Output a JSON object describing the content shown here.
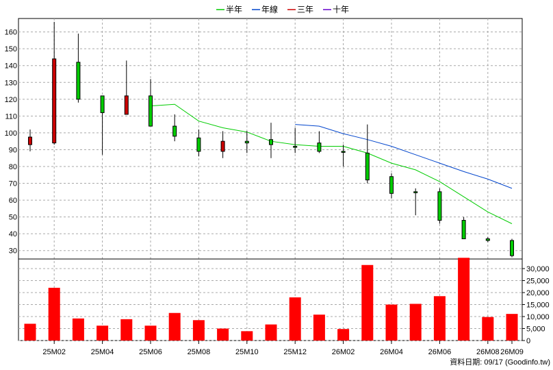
{
  "chart_data": {
    "type": "candlestick",
    "legend": [
      {
        "name": "半年",
        "color": "#00cc00"
      },
      {
        "name": "年線",
        "color": "#0044cc"
      },
      {
        "name": "三年",
        "color": "#cc0000"
      },
      {
        "name": "十年",
        "color": "#6600cc"
      }
    ],
    "legend_position": "top-center",
    "up_color": "#00cc00",
    "down_color": "#cc0000",
    "volume_color": "#ff0000",
    "price_axis": {
      "ticks": [
        30,
        40,
        50,
        60,
        70,
        80,
        90,
        100,
        110,
        120,
        130,
        140,
        150,
        160
      ],
      "range": [
        25,
        168
      ]
    },
    "volume_axis": {
      "ticks": [
        "0",
        "5,000",
        "10,000",
        "15,000",
        "20,000",
        "25,000",
        "30,000"
      ],
      "tick_values": [
        0,
        5000,
        10000,
        15000,
        20000,
        25000,
        30000
      ],
      "range": [
        0,
        34000
      ]
    },
    "x_labels": [
      "25M02",
      "25M04",
      "25M06",
      "25M08",
      "25M10",
      "25M12",
      "26M02",
      "26M04",
      "26M06",
      "26M08",
      "26M09"
    ],
    "candles": [
      {
        "open": 97.5,
        "close": 93,
        "high": 102,
        "low": 89
      },
      {
        "open": 144,
        "close": 94,
        "high": 166,
        "low": 93
      },
      {
        "open": 120,
        "close": 142,
        "high": 159,
        "low": 118
      },
      {
        "open": 112,
        "close": 122,
        "high": 122,
        "low": 87
      },
      {
        "open": 122,
        "close": 111,
        "high": 143,
        "low": 111
      },
      {
        "open": 104,
        "close": 122,
        "high": 132,
        "low": 104
      },
      {
        "open": 98,
        "close": 104,
        "high": 111,
        "low": 95
      },
      {
        "open": 89,
        "close": 97,
        "high": 102,
        "low": 86
      },
      {
        "open": 95,
        "close": 89,
        "high": 101,
        "low": 85
      },
      {
        "open": 94,
        "close": 95,
        "high": 101,
        "low": 88
      },
      {
        "open": 93,
        "close": 96,
        "high": 106,
        "low": 85
      },
      {
        "open": 92,
        "close": 92,
        "high": 103,
        "low": 88
      },
      {
        "open": 89,
        "close": 94,
        "high": 101,
        "low": 88
      },
      {
        "open": 89,
        "close": 89,
        "high": 93,
        "low": 80
      },
      {
        "open": 72,
        "close": 88,
        "high": 105,
        "low": 70
      },
      {
        "open": 64,
        "close": 74,
        "high": 76,
        "low": 61
      },
      {
        "open": 65,
        "close": 65,
        "high": 67,
        "low": 51
      },
      {
        "open": 48,
        "close": 65,
        "high": 67,
        "low": 46
      },
      {
        "open": 37,
        "close": 48,
        "high": 50,
        "low": 37
      },
      {
        "open": 36,
        "close": 37,
        "high": 38,
        "low": 35
      },
      {
        "open": 27,
        "close": 36,
        "high": 37,
        "low": 26
      }
    ],
    "volumes": [
      7000,
      22000,
      9200,
      6200,
      8900,
      6200,
      11500,
      8500,
      5000,
      3900,
      6700,
      18000,
      10800,
      4800,
      31500,
      15000,
      15300,
      18500,
      34500,
      9800,
      11100
    ],
    "series": [
      {
        "name": "半年",
        "color": "#00cc00",
        "start_index": 5,
        "values": [
          116,
          117,
          107,
          103,
          100.5,
          95,
          93,
          92,
          92,
          88,
          82,
          78,
          71,
          62,
          53,
          46
        ]
      },
      {
        "name": "年線",
        "color": "#0044cc",
        "start_index": 11,
        "values": [
          105,
          104,
          99.5,
          96,
          92,
          87,
          82,
          77,
          72.5,
          67
        ]
      }
    ],
    "credit": "資料日期: 09/17  (Goodinfo.tw)"
  }
}
